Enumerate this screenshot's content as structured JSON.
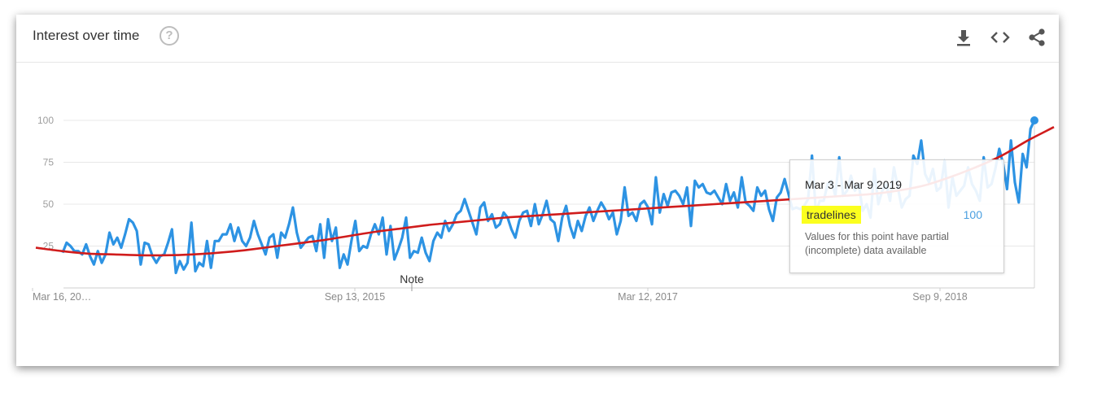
{
  "header": {
    "title": "Interest over time",
    "help_glyph": "?",
    "icons": [
      "download-icon",
      "embed-icon",
      "share-icon"
    ]
  },
  "colors": {
    "series": "#2d93e3",
    "trend": "#d01c1c",
    "highlight": "#fbff1e"
  },
  "tooltip": {
    "date": "Mar 3 - Mar 9 2019",
    "term": "tradelines",
    "value": "100",
    "note": "Values for this point have partial (incomplete) data available"
  },
  "note_label": "Note",
  "chart_data": {
    "type": "line",
    "x_tick_labels": [
      "Mar 16, 20…",
      "Sep 13, 2015",
      "Mar 12, 2017",
      "Sep 9, 2018"
    ],
    "y_ticks": [
      25,
      50,
      75,
      100
    ],
    "ylim": [
      0,
      100
    ],
    "grid": true,
    "series": [
      {
        "name": "tradelines",
        "values": [
          21,
          27,
          25,
          22,
          22,
          20,
          26,
          19,
          14,
          22,
          15,
          20,
          33,
          26,
          30,
          24,
          32,
          41,
          39,
          34,
          14,
          27,
          26,
          19,
          15,
          19,
          20,
          27,
          35,
          9,
          16,
          11,
          15,
          39,
          10,
          15,
          13,
          28,
          12,
          28,
          28,
          32,
          32,
          38,
          28,
          36,
          28,
          25,
          30,
          40,
          32,
          26,
          20,
          30,
          32,
          18,
          33,
          30,
          38,
          48,
          33,
          24,
          27,
          30,
          31,
          22,
          38,
          18,
          41,
          28,
          36,
          12,
          20,
          14,
          28,
          40,
          22,
          25,
          24,
          32,
          38,
          32,
          42,
          20,
          37,
          17,
          23,
          30,
          42,
          18,
          22,
          21,
          30,
          21,
          16,
          28,
          33,
          30,
          40,
          34,
          38,
          44,
          46,
          53,
          46,
          39,
          32,
          48,
          51,
          40,
          44,
          36,
          38,
          45,
          42,
          35,
          30,
          40,
          45,
          46,
          37,
          50,
          38,
          44,
          52,
          41,
          39,
          28,
          42,
          49,
          37,
          30,
          40,
          34,
          43,
          48,
          40,
          46,
          51,
          47,
          41,
          45,
          32,
          40,
          60,
          43,
          45,
          40,
          50,
          52,
          48,
          38,
          66,
          45,
          56,
          49,
          57,
          58,
          55,
          50,
          60,
          37,
          64,
          60,
          62,
          57,
          56,
          58,
          54,
          50,
          62,
          52,
          57,
          48,
          66,
          51,
          49,
          46,
          60,
          55,
          58,
          47,
          40,
          54,
          57,
          65,
          56,
          47,
          48,
          47,
          49,
          53,
          79,
          45,
          52,
          52,
          62,
          64,
          55,
          78,
          55,
          58,
          67,
          58,
          62,
          46,
          50,
          42,
          71,
          50,
          58,
          62,
          52,
          72,
          60,
          48,
          53,
          55,
          79,
          74,
          88,
          68,
          63,
          71,
          58,
          60,
          76,
          48,
          66,
          55,
          58,
          61,
          72,
          62,
          58,
          52,
          78,
          60,
          62,
          71,
          83,
          74,
          59,
          88,
          63,
          51,
          80,
          72,
          95,
          100
        ]
      }
    ],
    "trend_series": {
      "values": [
        24,
        22,
        20.5,
        20,
        19.5,
        19.5,
        20,
        21,
        22.5,
        24.5,
        26.5,
        28.5,
        31,
        33.5,
        35.5,
        37.5,
        39,
        40.5,
        42,
        43,
        44,
        45,
        46,
        47,
        48,
        49,
        50,
        51,
        52,
        53,
        54,
        55,
        56,
        58,
        61,
        66,
        72,
        79,
        88,
        96
      ]
    }
  }
}
